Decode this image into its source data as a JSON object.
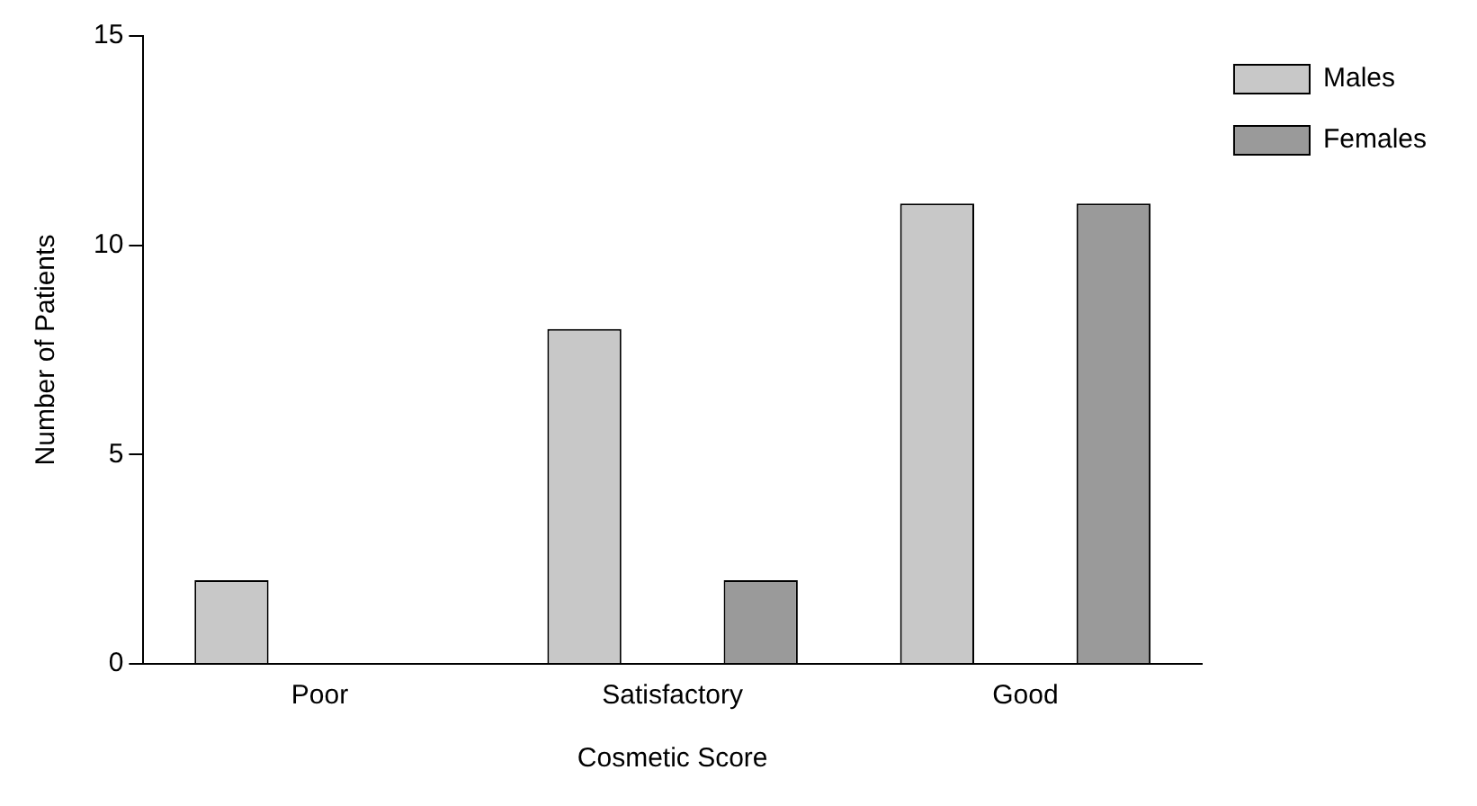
{
  "chart_data": {
    "type": "bar",
    "xlabel": "Cosmetic Score",
    "ylabel": "Number of Patients",
    "categories": [
      "Poor",
      "Satisfactory",
      "Good"
    ],
    "series": [
      {
        "name": "Males",
        "color": "#c8c8c8",
        "values": [
          2,
          8,
          11
        ]
      },
      {
        "name": "Females",
        "color": "#9a9a9a",
        "values": [
          0,
          2,
          11
        ]
      }
    ],
    "ylim": [
      0,
      15
    ],
    "yticks": [
      0,
      5,
      10,
      15
    ],
    "grid": false,
    "legend": "top right"
  }
}
